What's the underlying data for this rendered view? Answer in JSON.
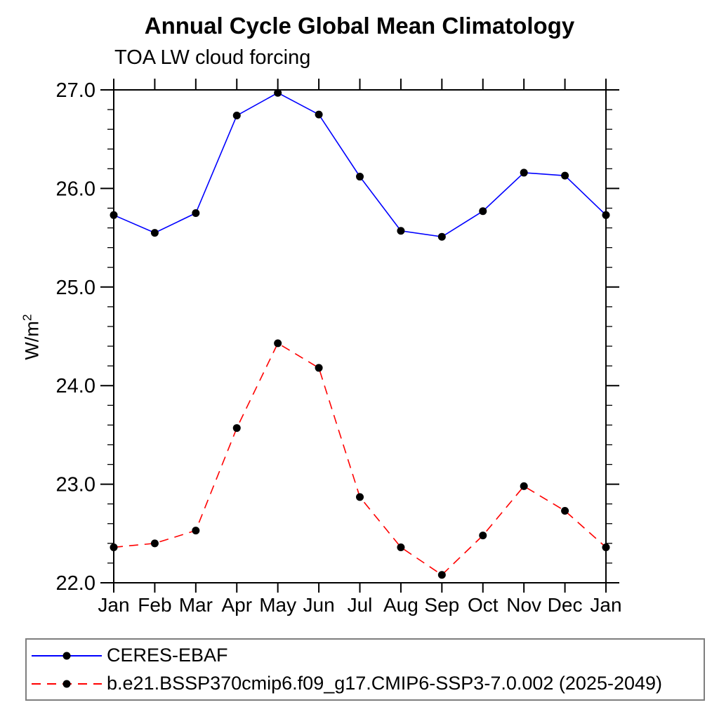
{
  "title": "Annual Cycle Global Mean Climatology",
  "subtitle": "TOA LW cloud forcing",
  "y_axis_label_base": "W/m",
  "y_axis_label_exponent": "2",
  "chart_data": {
    "type": "line",
    "categories": [
      "Jan",
      "Feb",
      "Mar",
      "Apr",
      "May",
      "Jun",
      "Jul",
      "Aug",
      "Sep",
      "Oct",
      "Nov",
      "Dec",
      "Jan"
    ],
    "xlabel": "",
    "ylabel": "W/m^2",
    "ylim": [
      22.0,
      27.0
    ],
    "y_tick_labels": [
      "22.0",
      "23.0",
      "24.0",
      "25.0",
      "26.0",
      "27.0"
    ],
    "y_minor_tick_interval": 0.2,
    "grid": false,
    "legend_position": "bottom-left framed box",
    "marker": "filled-circle",
    "marker_color": "#000000",
    "series": [
      {
        "name": "CERES-EBAF",
        "line_style": "solid",
        "color": "#0000ff",
        "values": [
          25.73,
          25.55,
          25.75,
          26.74,
          26.97,
          26.75,
          26.12,
          25.57,
          25.51,
          25.77,
          26.16,
          26.13,
          25.73
        ]
      },
      {
        "name": "b.e21.BSSP370cmip6.f09_g17.CMIP6-SSP3-7.0.002 (2025-2049)",
        "line_style": "dashed",
        "color": "#ff0000",
        "values": [
          22.36,
          22.4,
          22.53,
          23.57,
          24.43,
          24.18,
          22.87,
          22.36,
          22.08,
          22.48,
          22.98,
          22.73,
          22.36
        ]
      }
    ]
  }
}
